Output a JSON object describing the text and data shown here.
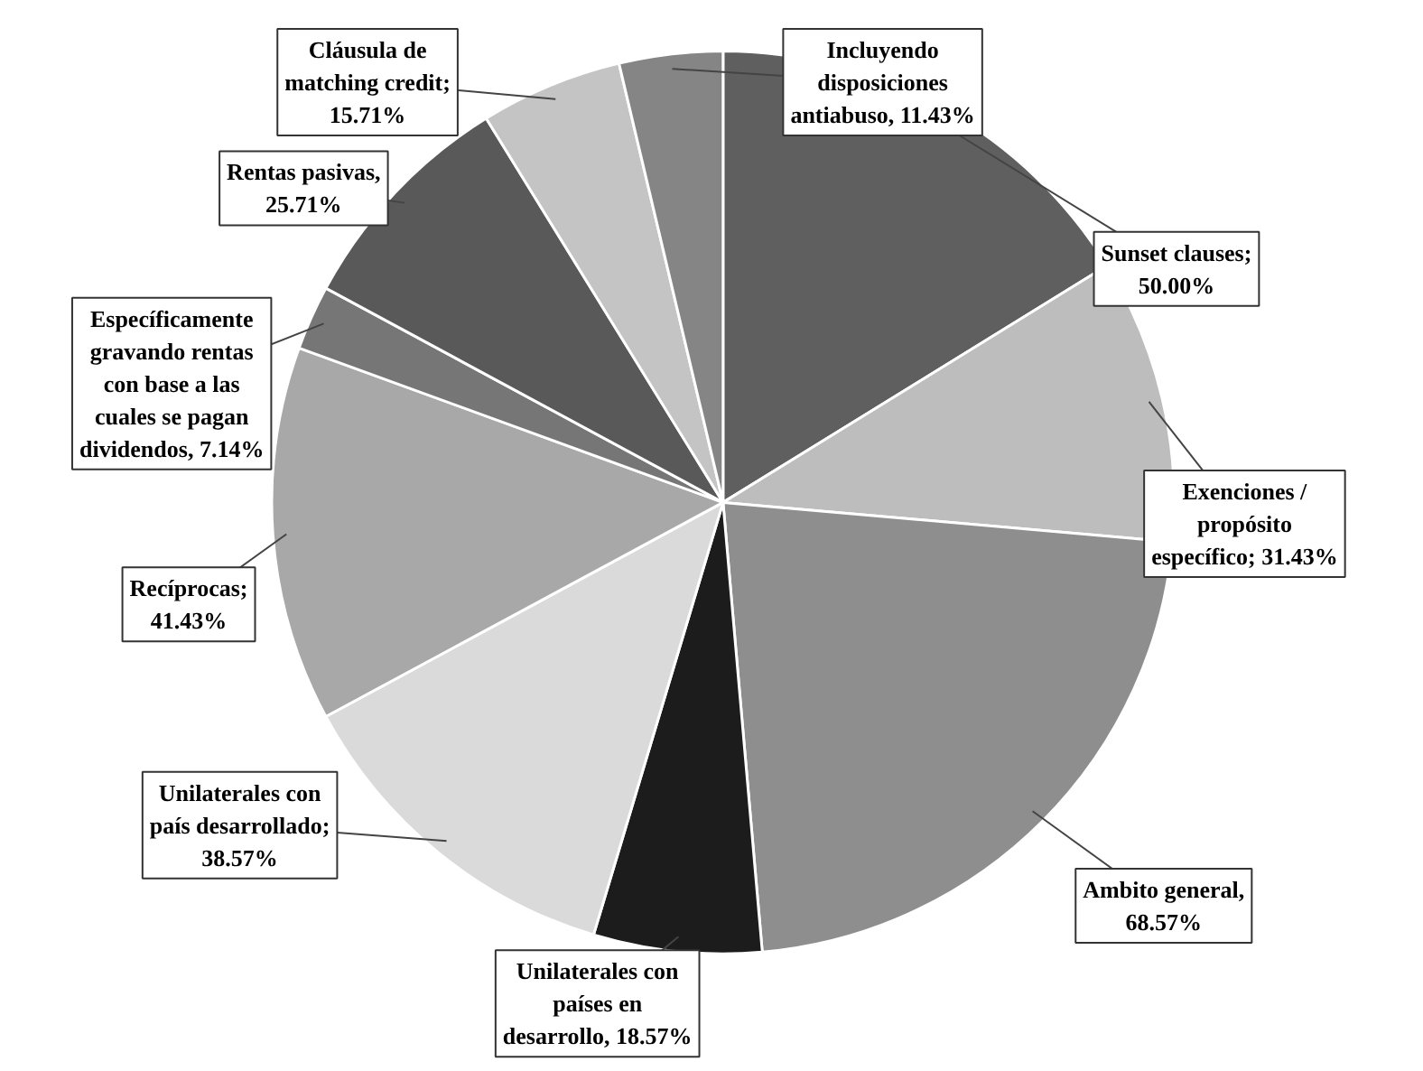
{
  "chart_data": {
    "type": "pie",
    "categories": [
      "Sunset clauses",
      "Exenciones / propósito específico",
      "Ambito general",
      "Unilaterales con países en desarrollo",
      "Unilaterales con país desarrollado",
      "Recíprocas",
      "Específicamente gravando rentas con base a las cuales se pagan dividendos",
      "Rentas pasivas",
      "Cláusula de matching credit",
      "Incluyendo disposiciones antiabuso"
    ],
    "values": [
      50.0,
      31.43,
      68.57,
      18.57,
      38.57,
      41.43,
      7.14,
      25.71,
      15.71,
      11.43
    ],
    "value_labels": [
      "; 50.00%",
      "; 31.43%",
      ", 68.57%",
      ", 18.57%",
      "; 38.57%",
      "; 41.43%",
      ", 7.14%",
      ", 25.71%",
      "; 15.71%",
      ", 11.43%"
    ],
    "colors": [
      "#5f5f5f",
      "#bdbdbd",
      "#8e8e8e",
      "#1c1c1c",
      "#dadada",
      "#a8a8a8",
      "#767676",
      "#595959",
      "#c4c4c4",
      "#858585"
    ]
  }
}
